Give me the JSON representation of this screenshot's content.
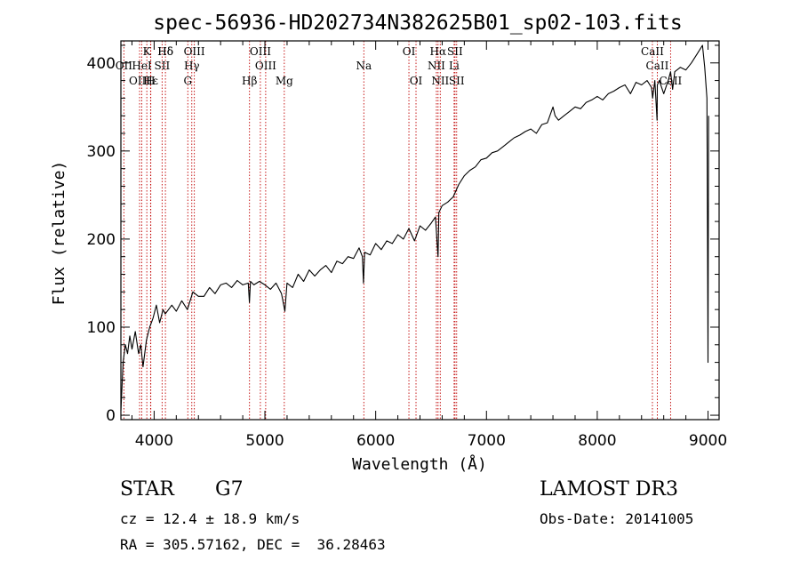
{
  "chart_data": {
    "type": "line",
    "title": "spec-56936-HD202734N382625B01_sp02-103.fits",
    "xlabel": "Wavelength (Å)",
    "ylabel": "Flux (relative)",
    "xlim": [
      3700,
      9100
    ],
    "ylim": [
      -5,
      425
    ],
    "x_ticks": [
      4000,
      5000,
      6000,
      7000,
      8000,
      9000
    ],
    "y_ticks": [
      0,
      100,
      200,
      300,
      400
    ],
    "series": [
      {
        "name": "flux",
        "x": [
          3700,
          3720,
          3740,
          3760,
          3780,
          3800,
          3830,
          3860,
          3880,
          3900,
          3930,
          3960,
          3990,
          4020,
          4050,
          4080,
          4100,
          4130,
          4160,
          4200,
          4250,
          4300,
          4350,
          4400,
          4450,
          4500,
          4550,
          4600,
          4650,
          4700,
          4750,
          4800,
          4850,
          4860,
          4870,
          4900,
          4950,
          5000,
          5050,
          5100,
          5150,
          5180,
          5200,
          5250,
          5300,
          5350,
          5400,
          5450,
          5500,
          5550,
          5600,
          5650,
          5700,
          5750,
          5800,
          5850,
          5880,
          5890,
          5900,
          5950,
          6000,
          6050,
          6100,
          6150,
          6200,
          6250,
          6300,
          6350,
          6400,
          6450,
          6500,
          6540,
          6555,
          6563,
          6570,
          6600,
          6650,
          6700,
          6750,
          6800,
          6850,
          6900,
          6950,
          7000,
          7050,
          7100,
          7150,
          7200,
          7250,
          7300,
          7350,
          7400,
          7450,
          7500,
          7550,
          7600,
          7620,
          7650,
          7700,
          7750,
          7800,
          7850,
          7900,
          7950,
          8000,
          8050,
          8100,
          8150,
          8200,
          8250,
          8300,
          8350,
          8400,
          8450,
          8490,
          8500,
          8520,
          8540,
          8542,
          8560,
          8600,
          8640,
          8662,
          8680,
          8700,
          8750,
          8800,
          8850,
          8900,
          8950,
          8970,
          8990,
          9000,
          9005
        ],
        "y": [
          5,
          60,
          80,
          70,
          90,
          75,
          95,
          70,
          80,
          55,
          85,
          100,
          110,
          125,
          105,
          120,
          115,
          120,
          125,
          118,
          130,
          120,
          140,
          135,
          135,
          145,
          138,
          148,
          150,
          145,
          153,
          148,
          150,
          128,
          152,
          148,
          152,
          148,
          143,
          150,
          138,
          118,
          150,
          145,
          160,
          152,
          165,
          158,
          165,
          170,
          162,
          175,
          172,
          180,
          178,
          190,
          180,
          150,
          185,
          182,
          195,
          188,
          198,
          195,
          205,
          200,
          212,
          198,
          215,
          210,
          218,
          225,
          195,
          180,
          230,
          238,
          242,
          248,
          262,
          272,
          278,
          282,
          290,
          292,
          298,
          300,
          305,
          310,
          315,
          318,
          322,
          325,
          320,
          330,
          332,
          350,
          340,
          335,
          340,
          345,
          350,
          348,
          355,
          358,
          362,
          358,
          365,
          368,
          372,
          375,
          365,
          378,
          375,
          380,
          372,
          360,
          380,
          335,
          375,
          380,
          365,
          380,
          390,
          370,
          390,
          395,
          392,
          400,
          410,
          420,
          395,
          360,
          60,
          340
        ]
      }
    ],
    "line_labels": [
      {
        "name": "Hδ",
        "wave": 4102,
        "row": 1
      },
      {
        "name": "K",
        "wave": 3934,
        "row": 1
      },
      {
        "name": "Hδ",
        "wave": 4102,
        "row": 1
      },
      {
        "name": "OIII",
        "wave": 4363,
        "row": 1
      },
      {
        "name": "OIII",
        "wave": 4959,
        "row": 1
      },
      {
        "name": "OI",
        "wave": 6300,
        "row": 1
      },
      {
        "name": "Hα",
        "wave": 6563,
        "row": 1
      },
      {
        "name": "SII",
        "wave": 6716,
        "row": 1
      },
      {
        "name": "CaII",
        "wave": 8498,
        "row": 1
      },
      {
        "name": "OII",
        "wave": 3727,
        "row": 2
      },
      {
        "name": "HeI",
        "wave": 3889,
        "row": 2
      },
      {
        "name": "SII",
        "wave": 4072,
        "row": 2
      },
      {
        "name": "Hγ",
        "wave": 4340,
        "row": 2
      },
      {
        "name": "OIII",
        "wave": 5007,
        "row": 2
      },
      {
        "name": "Na",
        "wave": 5893,
        "row": 2
      },
      {
        "name": "NII",
        "wave": 6548,
        "row": 2
      },
      {
        "name": "Li",
        "wave": 6708,
        "row": 2
      },
      {
        "name": "CaII",
        "wave": 8542,
        "row": 2
      },
      {
        "name": "OIII",
        "wave": 3869,
        "row": 3
      },
      {
        "name": "Hε",
        "wave": 3970,
        "row": 3
      },
      {
        "name": "H",
        "wave": 3968,
        "row": 3
      },
      {
        "name": "G",
        "wave": 4304,
        "row": 3
      },
      {
        "name": "Hβ",
        "wave": 4861,
        "row": 3
      },
      {
        "name": "Mg",
        "wave": 5175,
        "row": 3
      },
      {
        "name": "OI",
        "wave": 6364,
        "row": 3
      },
      {
        "name": "NII",
        "wave": 6583,
        "row": 3
      },
      {
        "name": "SII",
        "wave": 6731,
        "row": 3
      },
      {
        "name": "CaII",
        "wave": 8662,
        "row": 3
      }
    ],
    "line_markers": [
      3727,
      3869,
      3889,
      3934,
      3968,
      3970,
      4072,
      4102,
      4304,
      4340,
      4363,
      4861,
      4959,
      5007,
      5175,
      5893,
      6300,
      6364,
      6548,
      6563,
      6583,
      6708,
      6716,
      6731,
      8498,
      8542,
      8662
    ],
    "colors": {
      "spectrum": "#000000",
      "markers": "#c00000",
      "axes": "#000000"
    }
  },
  "info": {
    "class": "STAR",
    "subclass": "G7",
    "survey": "LAMOST DR3",
    "cz": "cz = 12.4 ± 18.9 km/s",
    "obs_date": "Obs-Date: 20141005",
    "radec": "RA = 305.57162, DEC =  36.28463"
  }
}
